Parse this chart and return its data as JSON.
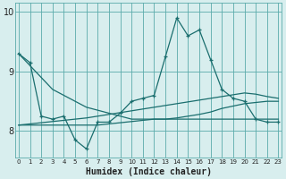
{
  "xlabel": "Humidex (Indice chaleur)",
  "bg_color": "#d8eeee",
  "grid_color": "#5aabab",
  "line_color": "#1a6e6e",
  "x": [
    0,
    1,
    2,
    3,
    4,
    5,
    6,
    7,
    8,
    9,
    10,
    11,
    12,
    13,
    14,
    15,
    16,
    17,
    18,
    19,
    20,
    21,
    22,
    23
  ],
  "y_main": [
    9.3,
    9.15,
    8.25,
    8.2,
    8.25,
    7.85,
    7.7,
    8.15,
    8.15,
    8.3,
    8.5,
    8.55,
    8.6,
    9.25,
    9.9,
    9.6,
    9.7,
    9.2,
    8.7,
    8.55,
    8.5,
    8.2,
    8.15,
    8.15
  ],
  "y_diagonal": [
    9.3,
    9.1,
    8.9,
    8.7,
    8.6,
    8.5,
    8.4,
    8.35,
    8.3,
    8.25,
    8.2,
    8.2,
    8.2,
    8.2,
    8.22,
    8.25,
    8.28,
    8.32,
    8.38,
    8.42,
    8.46,
    8.48,
    8.5,
    8.5
  ],
  "y_rising1": [
    8.1,
    8.12,
    8.14,
    8.16,
    8.18,
    8.2,
    8.22,
    8.25,
    8.28,
    8.31,
    8.34,
    8.37,
    8.4,
    8.43,
    8.46,
    8.49,
    8.52,
    8.55,
    8.58,
    8.61,
    8.64,
    8.62,
    8.58,
    8.55
  ],
  "y_flat": [
    8.1,
    8.1,
    8.1,
    8.1,
    8.1,
    8.1,
    8.1,
    8.1,
    8.12,
    8.14,
    8.16,
    8.18,
    8.2,
    8.2,
    8.2,
    8.2,
    8.2,
    8.2,
    8.2,
    8.2,
    8.2,
    8.2,
    8.2,
    8.2
  ],
  "ylim": [
    7.55,
    10.15
  ],
  "yticks": [
    8,
    9,
    10
  ],
  "xticks": [
    0,
    1,
    2,
    3,
    4,
    5,
    6,
    7,
    8,
    9,
    10,
    11,
    12,
    13,
    14,
    15,
    16,
    17,
    18,
    19,
    20,
    21,
    22,
    23
  ],
  "xlim": [
    -0.3,
    23.3
  ]
}
